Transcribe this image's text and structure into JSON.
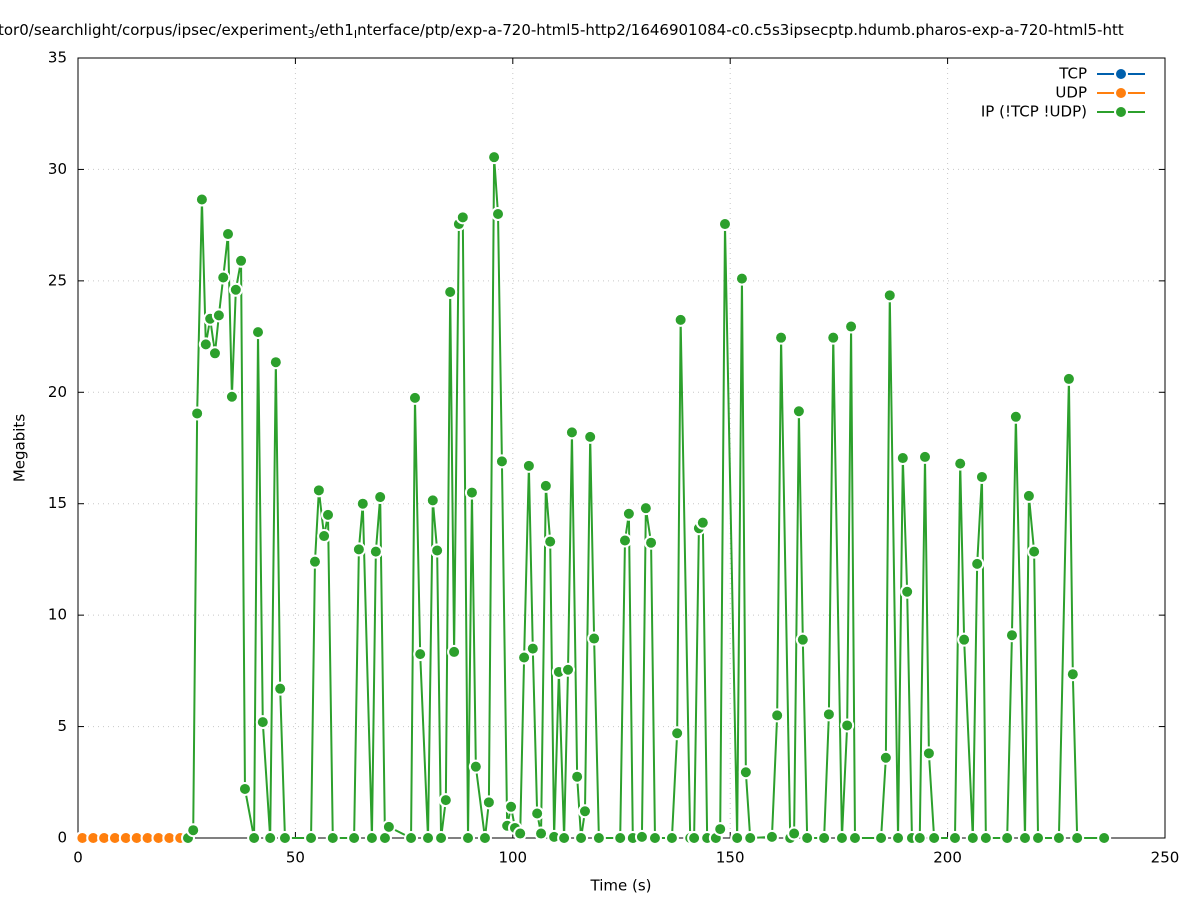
{
  "chart_data": {
    "type": "line",
    "title_parts": [
      "tor0/searchlight/corpus/ipsec/experiment",
      "3",
      "/eth1",
      "I",
      "nterface/ptp/exp-a-720-html5-http2/1646901084-c0.c5s3ipsecptp.hdumb.pharos-exp-a-720-html5-htt"
    ],
    "x_label": "Time (s)",
    "y_label": "Megabits",
    "xlim": [
      0,
      250
    ],
    "xticks": [
      0,
      50,
      100,
      150,
      200,
      250
    ],
    "ylim": [
      0,
      35
    ],
    "yticks": [
      0,
      5,
      10,
      15,
      20,
      25,
      30,
      35
    ],
    "grid": true,
    "legend": "upper right",
    "series": [
      {
        "name": "TCP",
        "color": "#0060ad",
        "x": [
          1,
          3.5,
          6,
          8.5,
          11,
          13.5,
          16,
          18.5,
          21,
          23.5
        ],
        "values": [
          0,
          0,
          0,
          0,
          0,
          0,
          0,
          0,
          0,
          0
        ]
      },
      {
        "name": "UDP",
        "color": "#ff7f0e",
        "x": [
          1,
          3.5,
          6,
          8.5,
          11,
          13.5,
          16,
          18.5,
          21,
          23.5
        ],
        "values": [
          0,
          0,
          0,
          0,
          0,
          0,
          0,
          0,
          0,
          0
        ]
      },
      {
        "name": "IP (!TCP  !UDP)",
        "color": "#2ca02c",
        "x": [
          25.3,
          26.5,
          27.4,
          28.5,
          29.4,
          30.4,
          31.5,
          32.4,
          33.4,
          34.5,
          35.4,
          36.3,
          37.5,
          38.4,
          40.5,
          41.4,
          42.5,
          44.2,
          45.5,
          46.5,
          47.6,
          53.6,
          54.5,
          55.4,
          56.6,
          57.5,
          58.6,
          63.5,
          64.6,
          65.5,
          67.6,
          68.5,
          69.5,
          70.6,
          71.5,
          76.6,
          77.5,
          78.7,
          80.5,
          81.6,
          82.6,
          83.5,
          84.6,
          85.6,
          86.5,
          87.6,
          88.5,
          89.7,
          90.6,
          91.5,
          93.6,
          94.5,
          95.7,
          96.6,
          97.5,
          98.7,
          99.6,
          100.5,
          101.7,
          102.6,
          103.7,
          104.6,
          105.6,
          106.5,
          107.6,
          108.6,
          109.5,
          110.6,
          111.8,
          112.7,
          113.6,
          114.8,
          115.7,
          116.6,
          117.8,
          118.7,
          119.8,
          124.7,
          125.8,
          126.7,
          127.6,
          129.7,
          130.6,
          131.8,
          132.7,
          136.6,
          137.8,
          138.6,
          140.8,
          141.7,
          142.8,
          143.7,
          144.7,
          146.7,
          147.7,
          148.8,
          151.6,
          152.7,
          153.6,
          154.6,
          159.6,
          160.8,
          161.7,
          163.8,
          164.7,
          165.8,
          166.7,
          167.7,
          171.6,
          172.7,
          173.7,
          175.7,
          176.9,
          177.8,
          178.7,
          184.7,
          185.8,
          186.7,
          188.6,
          189.7,
          190.7,
          191.8,
          193.6,
          194.8,
          195.7,
          196.9,
          201.7,
          202.9,
          203.8,
          205.8,
          206.8,
          207.9,
          208.8,
          213.7,
          214.8,
          215.7,
          217.8,
          218.7,
          219.9,
          220.8,
          225.6,
          227.9,
          228.8,
          229.8,
          236.0
        ],
        "values": [
          0,
          0.35,
          19.05,
          28.65,
          22.15,
          23.3,
          21.75,
          23.45,
          25.15,
          27.1,
          19.8,
          24.6,
          25.9,
          2.2,
          0,
          22.7,
          5.2,
          0,
          21.35,
          6.7,
          0,
          0,
          12.4,
          15.6,
          13.55,
          14.5,
          0,
          0,
          12.95,
          15,
          0,
          12.85,
          15.3,
          0,
          0.5,
          0,
          19.75,
          8.25,
          0,
          15.15,
          12.9,
          0,
          1.7,
          24.5,
          8.35,
          27.55,
          27.85,
          0,
          15.5,
          3.2,
          0,
          1.6,
          30.55,
          28,
          16.9,
          0.55,
          1.4,
          0.45,
          0.2,
          8.1,
          16.7,
          8.5,
          1.1,
          0.2,
          15.8,
          13.3,
          0.05,
          7.45,
          0,
          7.55,
          18.2,
          2.75,
          0,
          1.2,
          18,
          8.95,
          0,
          0,
          13.35,
          14.55,
          0,
          0.05,
          14.8,
          13.25,
          0,
          0,
          4.7,
          23.25,
          0,
          0,
          13.9,
          14.15,
          0,
          0,
          0.4,
          27.55,
          0,
          25.1,
          2.95,
          0,
          0.05,
          5.5,
          22.45,
          0,
          0.2,
          19.15,
          8.9,
          0,
          0,
          5.55,
          22.45,
          0,
          5.05,
          22.95,
          0,
          0,
          3.6,
          24.35,
          0,
          17.05,
          11.05,
          0,
          0,
          17.1,
          3.8,
          0,
          0,
          16.8,
          8.9,
          0,
          12.3,
          16.2,
          0,
          0,
          9.1,
          18.9,
          0,
          15.35,
          12.85,
          0,
          0,
          20.6,
          7.35,
          0,
          0
        ]
      }
    ]
  }
}
